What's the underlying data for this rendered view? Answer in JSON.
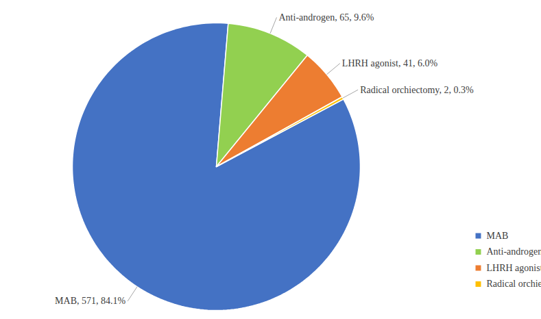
{
  "chart_data": {
    "type": "pie",
    "categories": [
      "MAB",
      "Anti-androgen",
      "LHRH agonist",
      "Radical orchiectomy"
    ],
    "values": [
      571,
      65,
      41,
      2
    ],
    "value_labels": [
      "MAB, 571, 84.1%",
      "Anti-androgen, 65, 9.6%",
      "LHRH agonist, 41, 6.0%",
      "Radical orchiectomy, 2, 0.3%"
    ],
    "colors": [
      "#4472c4",
      "#92d050",
      "#ed7d31",
      "#ffc000"
    ],
    "data_labels": true,
    "legend": "bottom-right"
  }
}
